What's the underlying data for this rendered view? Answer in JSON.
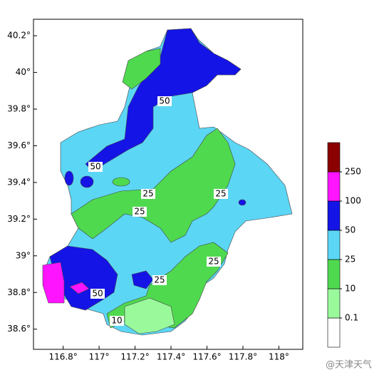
{
  "map": {
    "xlim": [
      116.635,
      118.133
    ],
    "ylim": [
      38.49,
      40.29
    ],
    "xticks": [
      {
        "value": 116.8,
        "label": "116.8°"
      },
      {
        "value": 117,
        "label": "117°"
      },
      {
        "value": 117.2,
        "label": "117.2°"
      },
      {
        "value": 117.4,
        "label": "117.4°"
      },
      {
        "value": 117.6,
        "label": "117.6°"
      },
      {
        "value": 117.8,
        "label": "117.8°"
      },
      {
        "value": 118,
        "label": "118°"
      }
    ],
    "yticks": [
      {
        "value": 38.6,
        "label": "38.6°"
      },
      {
        "value": 38.8,
        "label": "38.8°"
      },
      {
        "value": 39,
        "label": "39°"
      },
      {
        "value": 39.2,
        "label": "39.2°"
      },
      {
        "value": 39.4,
        "label": "39.4°"
      },
      {
        "value": 39.6,
        "label": "39.6°"
      },
      {
        "value": 39.8,
        "label": "39.8°"
      },
      {
        "value": 40,
        "label": "40°"
      },
      {
        "value": 40.2,
        "label": "40.2°"
      }
    ],
    "contour_labels": [
      50,
      50,
      25,
      25,
      25,
      25,
      25,
      50,
      10
    ]
  },
  "legend": {
    "levels": [
      0.1,
      10,
      25,
      50,
      100,
      250
    ],
    "colors": [
      "#ffffff",
      "#99f99b",
      "#4fd94f",
      "#5cd6f5",
      "#1414e6",
      "#ff14ff",
      "#8b0000"
    ]
  },
  "watermark": "@天津天气"
}
